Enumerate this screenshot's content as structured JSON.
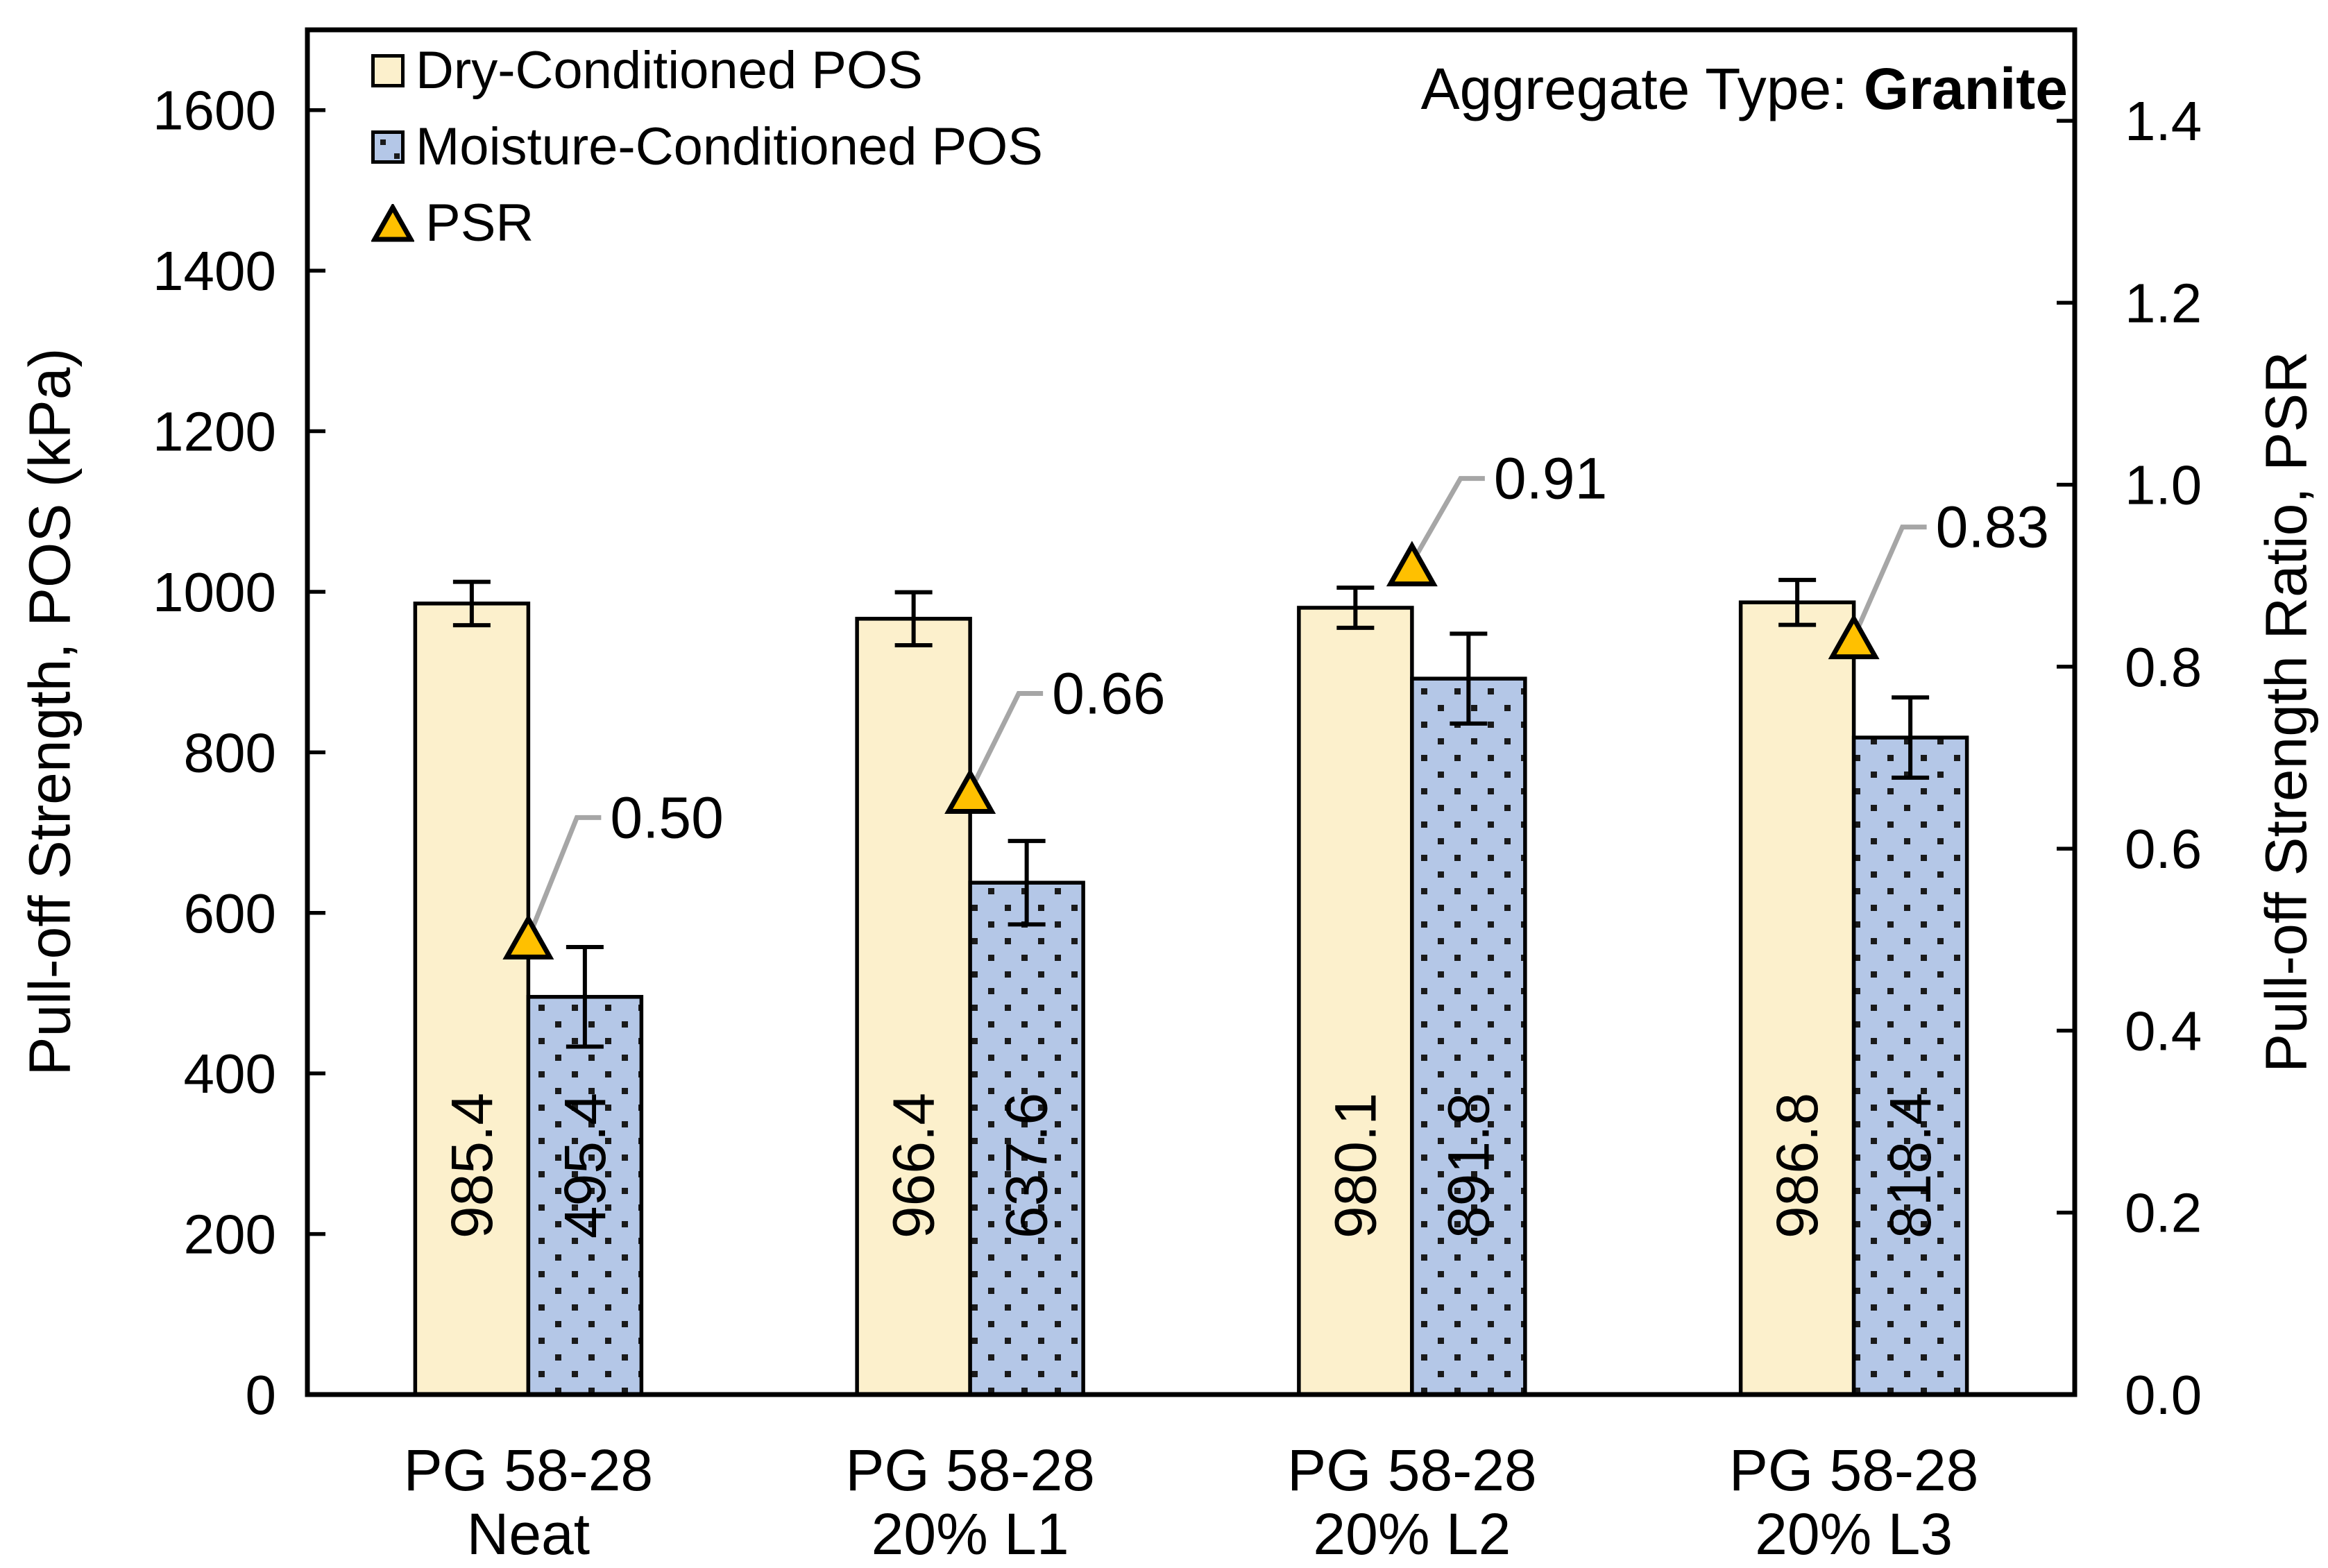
{
  "title": {
    "prefix": "Aggregate Type: ",
    "emphasis": "Granite"
  },
  "legend": {
    "dry_label": "Dry-Conditioned POS",
    "moisture_label": "Moisture-Conditioned POS",
    "psr_label": "PSR"
  },
  "chart_data": {
    "type": "bar",
    "title": "Aggregate Type: Granite",
    "categories": [
      [
        "PG 58-28",
        "Neat"
      ],
      [
        "PG 58-28",
        "20% L1"
      ],
      [
        "PG 58-28",
        "20% L2"
      ],
      [
        "PG 58-28",
        "20% L3"
      ]
    ],
    "series": [
      {
        "name": "Dry-Conditioned POS",
        "values": [
          985.4,
          966.4,
          980.1,
          986.8
        ],
        "value_labels": [
          "985.4",
          "966.4",
          "980.1",
          "986.8"
        ],
        "errors_kpa_estimated": [
          27,
          33,
          25,
          28
        ],
        "axis": "left",
        "fill": "#FCF0CC"
      },
      {
        "name": "Moisture-Conditioned POS",
        "values": [
          495.4,
          637.6,
          891.8,
          818.4
        ],
        "value_labels": [
          "495.4",
          "637.6",
          "891.8",
          "818.4"
        ],
        "errors_kpa_estimated": [
          62,
          52,
          56,
          50
        ],
        "axis": "left",
        "fill": "#B4C7E7",
        "pattern": "square-dots"
      },
      {
        "name": "PSR",
        "type": "marker-triangle",
        "values": [
          0.5,
          0.66,
          0.91,
          0.83
        ],
        "value_labels": [
          "0.50",
          "0.66",
          "0.91",
          "0.83"
        ],
        "axis": "right",
        "fill": "#FFC000"
      }
    ],
    "left_axis": {
      "label": "Pull-off Strength, POS (kPa)",
      "min": 0,
      "max": 1700,
      "tick_step": 200,
      "tick_labels": [
        "0",
        "200",
        "400",
        "600",
        "800",
        "1000",
        "1200",
        "1400",
        "1600"
      ]
    },
    "right_axis": {
      "label": "Pull-off Strength Ratio, PSR",
      "min": 0,
      "max": 1.5,
      "tick_step": 0.2,
      "tick_labels": [
        "0.0",
        "0.2",
        "0.4",
        "0.6",
        "0.8",
        "1.0",
        "1.2",
        "1.4"
      ]
    },
    "grid": "off",
    "legend_position": "top-left-inside",
    "colors": {
      "dry_fill": "#FCF0CC",
      "moisture_fill": "#B4C7E7",
      "pattern_dot": "#1a1a1a",
      "psr_marker": "#FFC000",
      "leader_line": "#A6A6A6",
      "axis_and_text": "#000000",
      "background": "#FFFFFF"
    }
  }
}
